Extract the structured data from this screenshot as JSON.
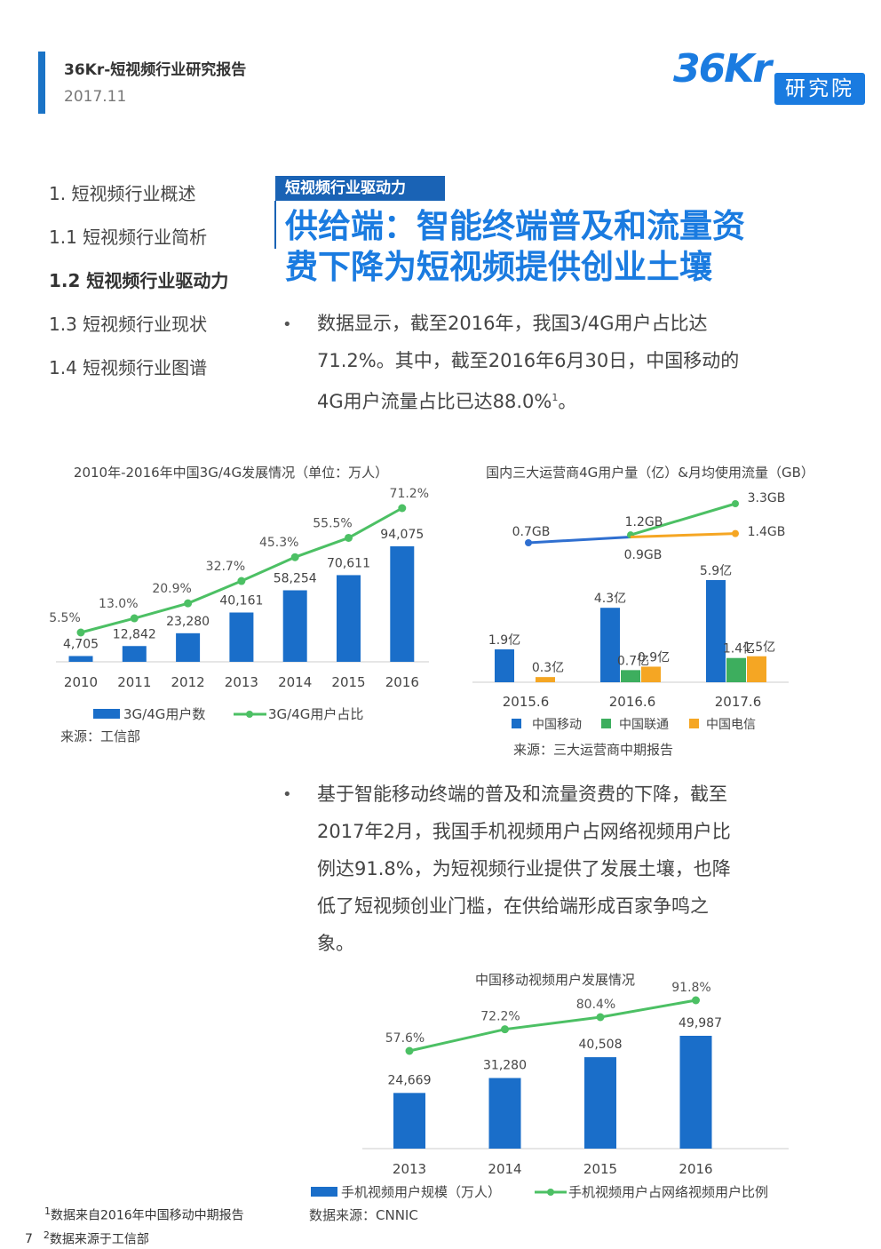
{
  "header": {
    "title": "36Kr-短视频行业研究报告",
    "date": "2017.11",
    "logo_text": "36Kr",
    "logo_badge": "研究院"
  },
  "nav": {
    "items": [
      {
        "label": "1. 短视频行业概述",
        "active": false
      },
      {
        "label": "1.1 短视频行业简析",
        "active": false
      },
      {
        "label": "1.2 短视频行业驱动力",
        "active": true
      },
      {
        "label": "1.3 短视频行业现状",
        "active": false
      },
      {
        "label": "1.4 短视频行业图谱",
        "active": false
      }
    ]
  },
  "section": {
    "tag": "短视频行业驱动力",
    "headline_line1": "供给端：智能终端普及和流量资",
    "headline_line2": "费下降为短视频提供创业土壤"
  },
  "bullets": {
    "first": {
      "line1": "数据显示，截至2016年，我国3/4G用户占比达",
      "line2": "71.2%。其中，截至2016年6月30日，中国移动的",
      "line3": "4G用户流量占比已达88.0%",
      "sup": "1",
      "line3_end": "。"
    },
    "second": {
      "line1": "基于智能移动终端的普及和流量资费的下降，截至",
      "line2": "2017年2月，我国手机视频用户占网络视频用户比",
      "line3": "例达91.8%，为短视频行业提供了发展土壤，也降",
      "line4": "低了短视频创业门槛，在供给端形成百家争鸣之",
      "line5": "象。"
    }
  },
  "footnotes": {
    "page_number": "7",
    "note1_sup": "1",
    "note1": "数据来自2016年中国移动中期报告",
    "note2_sup": "2",
    "note2": "数据来源于工信部"
  },
  "colors": {
    "blue": "#1a6ec9",
    "green": "#4cc064",
    "green_dark": "#3dae5e",
    "orange": "#f5a623",
    "line_blue": "#2f6fd0"
  },
  "chart_data": [
    {
      "type": "bar+line",
      "title": "2010年-2016年中国3G/4G发展情况（单位：万人）",
      "categories": [
        "2010",
        "2011",
        "2012",
        "2013",
        "2014",
        "2015",
        "2016"
      ],
      "series": [
        {
          "name": "3G/4G用户数",
          "type": "bar",
          "values": [
            4705,
            12842,
            23280,
            40161,
            58254,
            70611,
            94075
          ],
          "labels": [
            "4,705",
            "12,842",
            "23,280",
            "40,161",
            "58,254",
            "70,611",
            "94,075"
          ]
        },
        {
          "name": "3G/4G用户占比",
          "type": "line",
          "values": [
            5.5,
            13.0,
            20.9,
            32.7,
            45.3,
            55.5,
            71.2
          ],
          "labels": [
            "5.5%",
            "13.0%",
            "20.9%",
            "32.7%",
            "45.3%",
            "55.5%",
            "71.2%"
          ]
        }
      ],
      "source": "来源：工信部"
    },
    {
      "type": "grouped-bar+line",
      "title": "国内三大运营商4G用户量（亿）&月均使用流量（GB）",
      "categories": [
        "2015.6",
        "2016.6",
        "2017.6"
      ],
      "series": [
        {
          "name": "中国移动",
          "type": "bar",
          "values": [
            1.9,
            4.3,
            5.9
          ],
          "labels": [
            "1.9亿",
            "4.3亿",
            "5.9亿"
          ]
        },
        {
          "name": "中国联通",
          "type": "bar",
          "values": [
            null,
            0.7,
            1.4
          ],
          "labels": [
            "",
            "0.7亿",
            "1.4亿"
          ]
        },
        {
          "name": "中国电信",
          "type": "bar",
          "values": [
            0.3,
            0.9,
            1.5
          ],
          "labels": [
            "0.3亿",
            "0.9亿",
            "1.5亿"
          ]
        }
      ],
      "traffic_lines": [
        {
          "values": [
            0.7,
            0.9
          ],
          "labels": [
            "0.7GB",
            "0.9GB"
          ]
        },
        {
          "values": [
            1.2,
            3.3
          ],
          "labels": [
            "1.2GB",
            "3.3GB"
          ]
        },
        {
          "values": [
            0.9,
            1.4
          ],
          "labels": [
            "",
            "1.4GB"
          ]
        }
      ],
      "source": "来源：三大运营商中期报告"
    },
    {
      "type": "bar+line",
      "title": "中国移动视频用户发展情况",
      "categories": [
        "2013",
        "2014",
        "2015",
        "2016"
      ],
      "series": [
        {
          "name": "手机视频用户规模（万人）",
          "type": "bar",
          "values": [
            24669,
            31280,
            40508,
            49987
          ],
          "labels": [
            "24,669",
            "31,280",
            "40,508",
            "49,987"
          ]
        },
        {
          "name": "手机视频用户占网络视频用户比例",
          "type": "line",
          "values": [
            57.6,
            72.2,
            80.4,
            91.8
          ],
          "labels": [
            "57.6%",
            "72.2%",
            "80.4%",
            "91.8%"
          ]
        }
      ],
      "source": "数据来源：CNNIC"
    }
  ]
}
